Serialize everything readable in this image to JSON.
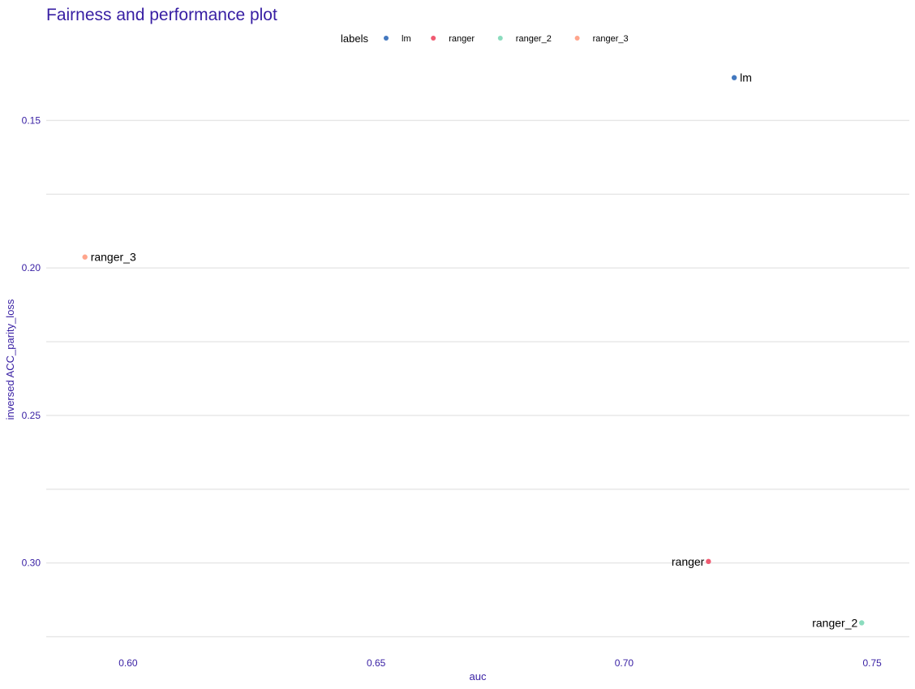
{
  "chart_data": {
    "type": "scatter",
    "title": "Fairness and performance plot",
    "xlabel": "auc",
    "ylabel": "inversed ACC_parity_loss",
    "xlim": [
      0.5835,
      0.7575
    ],
    "ylim": [
      0.1353,
      0.3265
    ],
    "y_reversed": true,
    "x_ticks": [
      "0.60",
      "0.65",
      "0.70",
      "0.75"
    ],
    "x_tick_values": [
      0.6,
      0.65,
      0.7,
      0.75
    ],
    "y_ticks": [
      "0.15",
      "0.20",
      "0.25",
      "0.30"
    ],
    "y_tick_values": [
      0.15,
      0.2,
      0.25,
      0.3
    ],
    "y_minor_values": [
      0.175,
      0.225,
      0.275,
      0.325
    ],
    "grid": true,
    "legend": {
      "title": "labels",
      "position": "top",
      "entries": [
        "lm",
        "ranger",
        "ranger_2",
        "ranger_3"
      ]
    },
    "points": [
      {
        "label": "lm",
        "x": 0.7222,
        "y": 0.1355,
        "color": "#4378bf",
        "label_side": "right"
      },
      {
        "label": "ranger",
        "x": 0.717,
        "y": 0.2995,
        "color": "#f05a71",
        "label_side": "left"
      },
      {
        "label": "ranger_2",
        "x": 0.7479,
        "y": 0.3203,
        "color": "#8bdcbe",
        "label_side": "left"
      },
      {
        "label": "ranger_3",
        "x": 0.5913,
        "y": 0.1963,
        "color": "#ffa58c",
        "label_side": "right"
      }
    ]
  }
}
